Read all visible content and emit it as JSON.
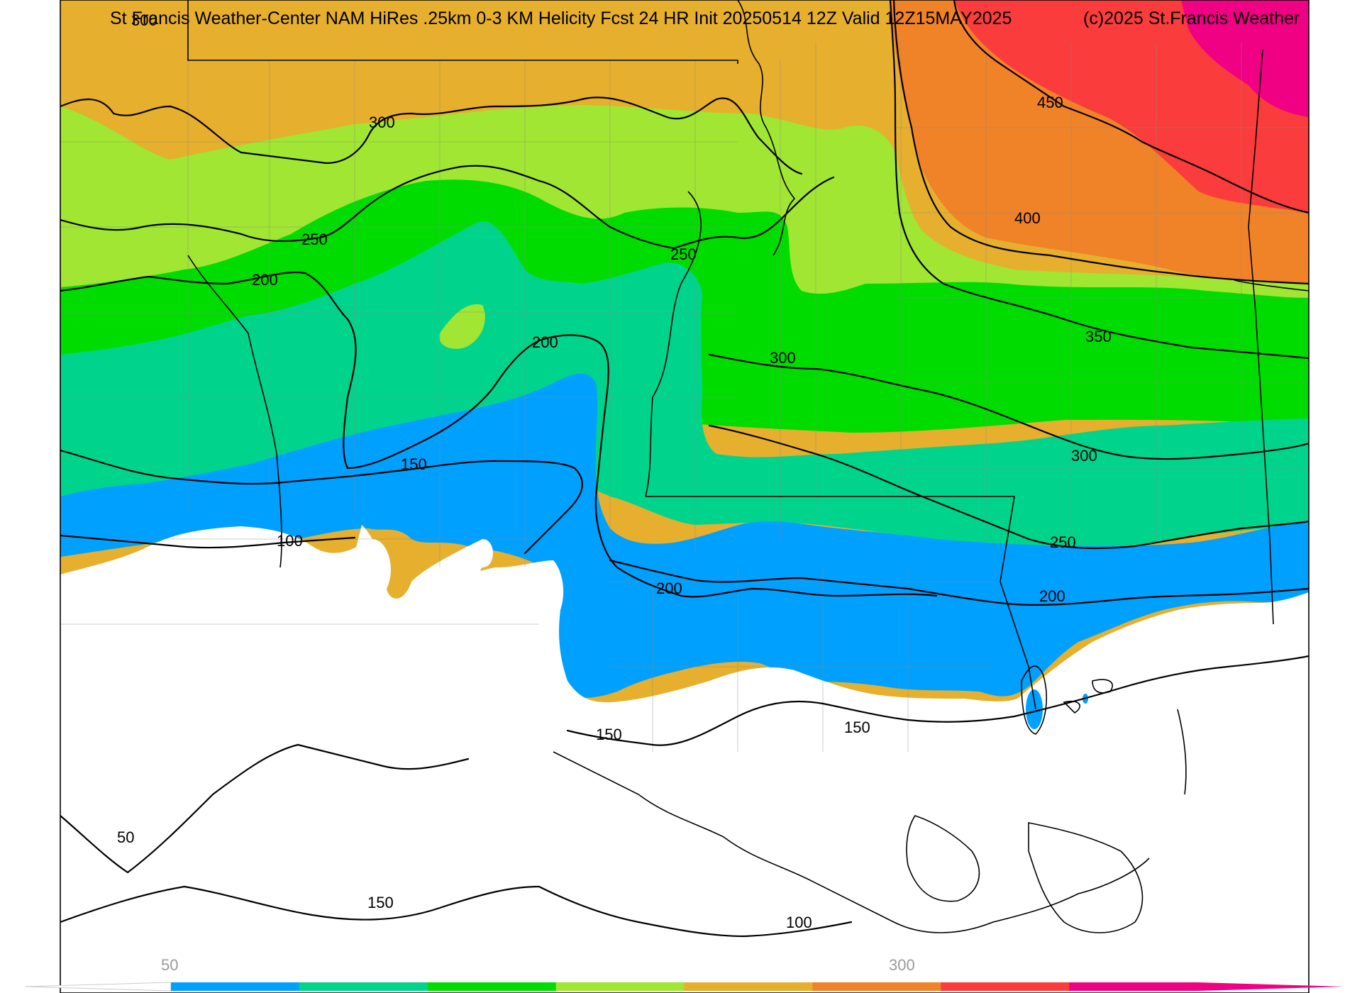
{
  "title": "St Francis Weather-Center NAM HiRes .25km 0-3 KM Helicity Fcst 24 HR Init 20250514 12Z  Valid 12Z15MAY2025",
  "copyright": "(c)2025 St.Francis Weather",
  "colors": {
    "band_50": "#ffffff",
    "band_150": "#00a0ff",
    "band_200": "#00d48c",
    "band_250": "#00dc00",
    "band_300": "#a0e632",
    "band_350": "#e6af2d",
    "band_400": "#f08228",
    "band_450": "#fa3c3c",
    "band_500": "#f00082"
  },
  "contour_labels": {
    "l300_tl": "300",
    "l300_a": "300",
    "l250_a": "250",
    "l250_b": "250",
    "l200_a": "200",
    "l200_b": "200",
    "l150_a": "150",
    "l100_a": "100",
    "l450": "450",
    "l400": "400",
    "l350": "350",
    "l300_b": "300",
    "l300_c": "300",
    "l250_c": "250",
    "l200_c": "200",
    "l200_d": "200",
    "l150_b": "150",
    "l150_c": "150",
    "l50": "50",
    "l150_d": "150",
    "l100_b": "100"
  },
  "colorbar": {
    "tick_labels": [
      "50",
      "300"
    ],
    "colors": [
      "#00a0ff",
      "#00d48c",
      "#00dc00",
      "#a0e632",
      "#e6af2d",
      "#f08228",
      "#fa3c3c",
      "#f00082"
    ]
  }
}
